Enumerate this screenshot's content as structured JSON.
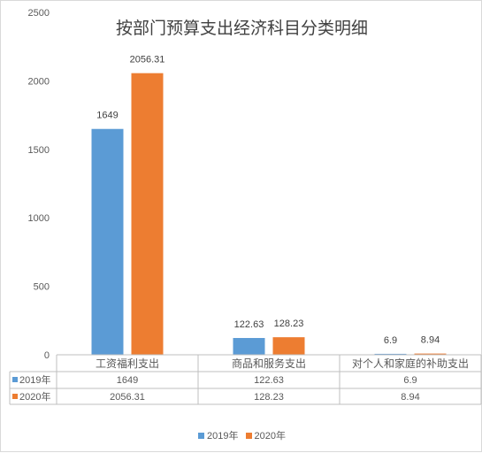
{
  "chart_data": {
    "type": "bar",
    "title": "按部门预算支出经济科目分类明细",
    "categories": [
      "工资福利支出",
      "商品和服务支出",
      "对个人和家庭的补助支出"
    ],
    "series": [
      {
        "name": "2019年",
        "color": "#5b9bd5",
        "values": [
          1649,
          122.63,
          6.9
        ],
        "labels": [
          "1649",
          "122.63",
          "6.9"
        ]
      },
      {
        "name": "2020年",
        "color": "#ed7d31",
        "values": [
          2056.31,
          128.23,
          8.94
        ],
        "labels": [
          "2056.31",
          "128.23",
          "8.94"
        ]
      }
    ],
    "ylim": [
      0,
      2500
    ],
    "yticks": [
      "0",
      "500",
      "1000",
      "1500",
      "2000",
      "2500"
    ],
    "grid": false,
    "data_table": true,
    "legend_position": "bottom"
  }
}
